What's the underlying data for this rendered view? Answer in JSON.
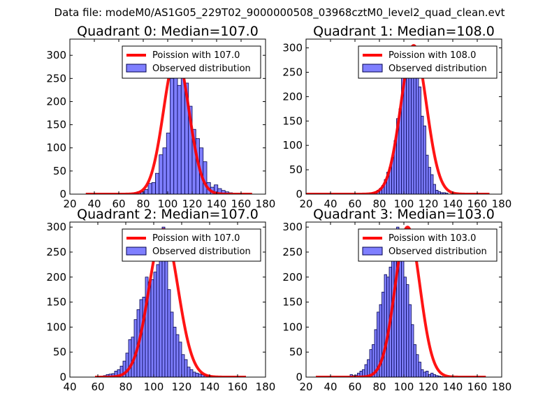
{
  "figure": {
    "suptitle": "Data file: modeM0/AS1G05_229T02_9000000508_03968cztM0_level2_quad_clean.evt",
    "colors": {
      "poisson": "#ff0000",
      "bar_fill": "#7f7fff",
      "bar_edge": "#00004d"
    }
  },
  "chart_data": [
    {
      "type": "bar",
      "title": "Quadrant 0: Median=107.0",
      "xlim": [
        20,
        180
      ],
      "ylim": [
        0,
        335
      ],
      "xticks": [
        20,
        40,
        60,
        80,
        100,
        120,
        140,
        160,
        180
      ],
      "yticks": [
        0,
        50,
        100,
        150,
        200,
        250,
        300
      ],
      "legend": {
        "location": "top-right",
        "entries": [
          "Poission with 107.0",
          "Observed distribution"
        ]
      },
      "poisson": {
        "label": "Poission with 107.0",
        "mean": 107.0,
        "peak": 300,
        "sigma": 10.35,
        "x_range": [
          33,
          169
        ]
      },
      "histogram": {
        "label": "Observed distribution",
        "bin_start": 72,
        "bin_width": 3,
        "counts": [
          3,
          5,
          5,
          10,
          23,
          25,
          45,
          85,
          100,
          132,
          250,
          262,
          235,
          265,
          240,
          190,
          140,
          120,
          100,
          70,
          25,
          15,
          20,
          12,
          8,
          5,
          3
        ]
      }
    },
    {
      "type": "bar",
      "title": "Quadrant 1: Median=108.0",
      "xlim": [
        20,
        180
      ],
      "ylim": [
        0,
        318
      ],
      "xticks": [
        20,
        40,
        60,
        80,
        100,
        120,
        140,
        160,
        180
      ],
      "yticks": [
        0,
        50,
        100,
        150,
        200,
        250,
        300
      ],
      "legend": {
        "location": "top-right",
        "entries": [
          "Poission with 108.0",
          "Observed distribution"
        ]
      },
      "poisson": {
        "label": "Poission with 108.0",
        "mean": 108.0,
        "peak": 305,
        "sigma": 10.4,
        "x_range": [
          20,
          170
        ]
      },
      "histogram": {
        "label": "Observed distribution",
        "bin_start": 72,
        "bin_width": 2,
        "counts": [
          2,
          3,
          5,
          8,
          12,
          18,
          30,
          45,
          55,
          75,
          110,
          155,
          175,
          240,
          255,
          285,
          300,
          290,
          280,
          270,
          220,
          160,
          140,
          80,
          55,
          40,
          20,
          8,
          5,
          3,
          3,
          2
        ]
      }
    },
    {
      "type": "bar",
      "title": "Quadrant 2: Median=107.0",
      "xlim": [
        40,
        180
      ],
      "ylim": [
        0,
        310
      ],
      "xticks": [
        40,
        60,
        80,
        100,
        120,
        140,
        160,
        180
      ],
      "yticks": [
        0,
        50,
        100,
        150,
        200,
        250,
        300
      ],
      "legend": {
        "location": "top-right",
        "entries": [
          "Poission with 107.0",
          "Observed distribution"
        ]
      },
      "poisson": {
        "label": "Poission with 107.0",
        "mean": 107.0,
        "peak": 295,
        "sigma": 10.35,
        "x_range": [
          58,
          166
        ]
      },
      "histogram": {
        "label": "Observed distribution",
        "bin_start": 60,
        "bin_width": 2,
        "counts": [
          1,
          2,
          3,
          5,
          6,
          7,
          12,
          15,
          22,
          32,
          48,
          75,
          80,
          115,
          135,
          155,
          160,
          200,
          190,
          195,
          210,
          225,
          285,
          300,
          240,
          175,
          130,
          100,
          85,
          70,
          45,
          35,
          20,
          15,
          10,
          8,
          6,
          5,
          4,
          3,
          2,
          2,
          1
        ]
      }
    },
    {
      "type": "bar",
      "title": "Quadrant 3: Median=103.0",
      "xlim": [
        20,
        180
      ],
      "ylim": [
        0,
        310
      ],
      "xticks": [
        20,
        40,
        60,
        80,
        100,
        120,
        140,
        160,
        180
      ],
      "yticks": [
        0,
        50,
        100,
        150,
        200,
        250,
        300
      ],
      "legend": {
        "location": "top-right",
        "entries": [
          "Poission with 103.0",
          "Observed distribution"
        ]
      },
      "poisson": {
        "label": "Poission with 103.0",
        "mean": 103.0,
        "peak": 300,
        "sigma": 10.15,
        "x_range": [
          28,
          167
        ]
      },
      "histogram": {
        "label": "Observed distribution",
        "bin_start": 56,
        "bin_width": 2,
        "counts": [
          5,
          3,
          4,
          8,
          12,
          15,
          25,
          35,
          55,
          65,
          95,
          130,
          145,
          170,
          205,
          200,
          220,
          250,
          290,
          300,
          285,
          270,
          200,
          185,
          145,
          105,
          65,
          45,
          30,
          15,
          10,
          12,
          5,
          8,
          5,
          3,
          2,
          1
        ]
      }
    }
  ]
}
